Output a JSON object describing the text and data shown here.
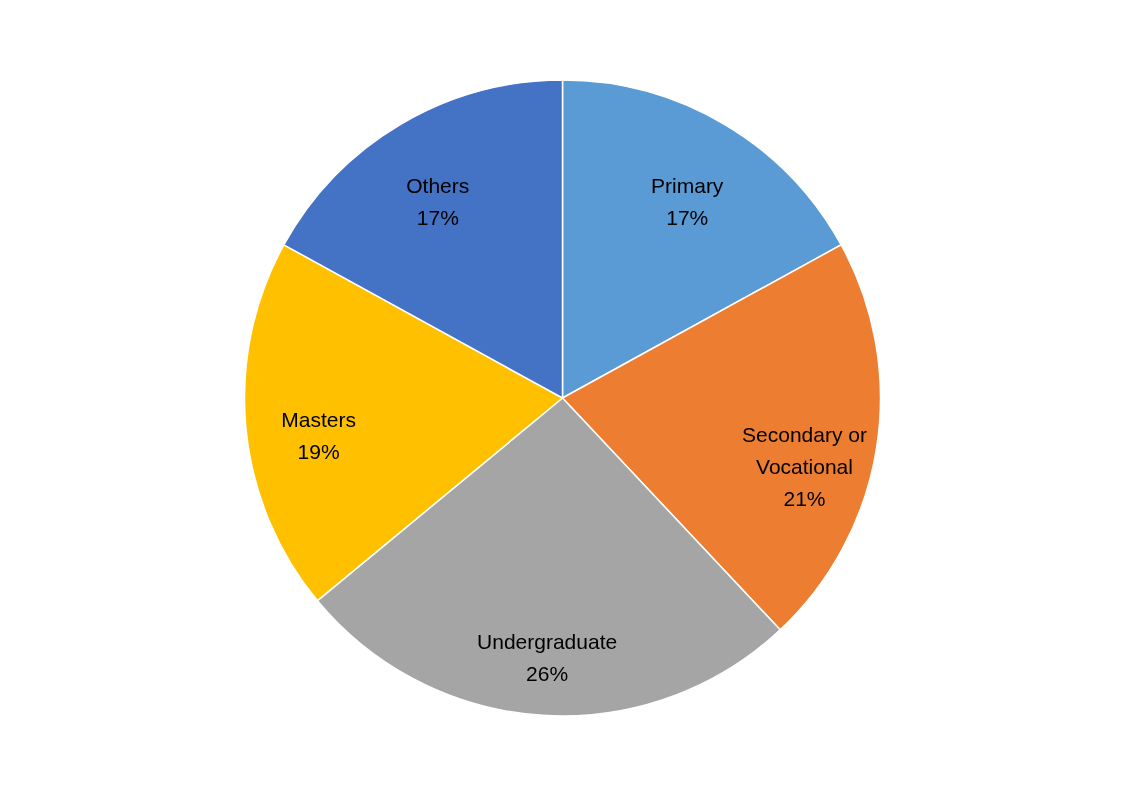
{
  "chart_data": {
    "type": "pie",
    "categories": [
      "Primary",
      "Secondary or Vocational",
      "Undergraduate",
      "Masters",
      "Others"
    ],
    "values": [
      17,
      21,
      26,
      19,
      17
    ],
    "value_labels": [
      "17%",
      "21%",
      "26%",
      "19%",
      "17%"
    ],
    "colors": [
      "#5b9bd5",
      "#ed7d31",
      "#a5a5a5",
      "#ffc000",
      "#4472c4"
    ],
    "legend": false
  }
}
